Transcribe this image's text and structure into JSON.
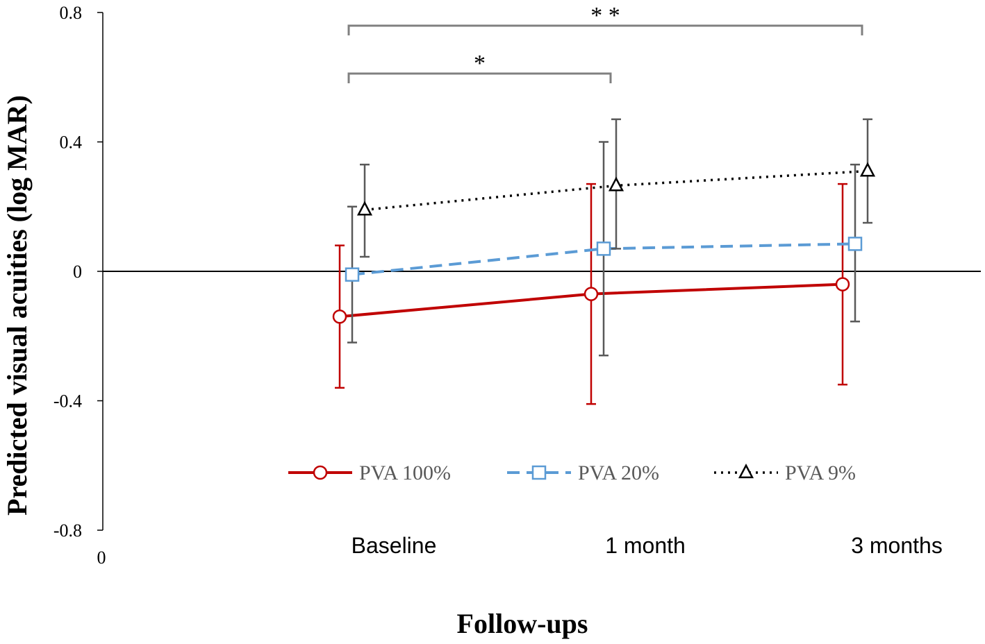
{
  "chart_data": {
    "type": "line",
    "title": "",
    "xlabel": "Follow-ups",
    "ylabel": "Predicted visual acuities (log MAR)",
    "categories": [
      "Baseline",
      "1 month",
      "3 months"
    ],
    "x_origin_label": "0",
    "ylim": [
      -0.8,
      0.8
    ],
    "yticks": [
      0.8,
      0.4,
      0,
      -0.4,
      -0.8
    ],
    "ytick_labels": [
      "0.8",
      "0.4",
      "0",
      "-0.4",
      "-0.8"
    ],
    "grid": false,
    "legend_position": "bottom-center",
    "series": [
      {
        "name": "PVA 100%",
        "color": "#c00000",
        "line_style": "solid",
        "marker": "circle",
        "offset": -1,
        "values": [
          -0.14,
          -0.07,
          -0.04
        ],
        "error_low": [
          -0.36,
          -0.41,
          -0.35
        ],
        "error_high": [
          0.08,
          0.27,
          0.27
        ]
      },
      {
        "name": "PVA 20%",
        "color": "#5b9bd5",
        "line_style": "dashed",
        "marker": "square",
        "offset": 0,
        "values": [
          -0.01,
          0.07,
          0.085
        ],
        "error_low": [
          -0.22,
          -0.26,
          -0.155
        ],
        "error_high": [
          0.2,
          0.4,
          0.33
        ]
      },
      {
        "name": "PVA 9%",
        "color": "#000000",
        "line_style": "dotted",
        "marker": "triangle",
        "offset": 1,
        "values": [
          0.19,
          0.265,
          0.31
        ],
        "error_low": [
          0.045,
          0.07,
          0.15
        ],
        "error_high": [
          0.33,
          0.47,
          0.47
        ]
      }
    ],
    "annotations": [
      {
        "label": "*",
        "from": 0,
        "to": 1,
        "level": 1
      },
      {
        "label": "**",
        "from": 0,
        "to": 2,
        "level": 2
      }
    ],
    "error_bar_color": "#595959",
    "bracket_color": "#808080"
  }
}
